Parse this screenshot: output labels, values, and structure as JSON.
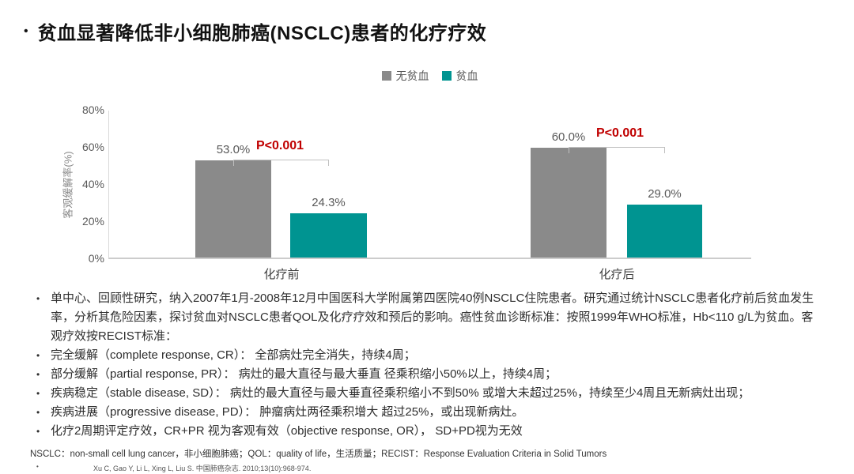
{
  "slide": {
    "title_bullet": "•",
    "title": "贫血显著降低非小细胞肺癌(NSCLC)患者的化疗疗效"
  },
  "chart_data": {
    "type": "bar",
    "title": "",
    "categories": [
      "化疗前",
      "化疗后"
    ],
    "series": [
      {
        "name": "无贫血",
        "color": "#8a8a8a",
        "values": [
          53.0,
          60.0
        ],
        "labels": [
          "53.0%",
          "60.0%"
        ]
      },
      {
        "name": "贫血",
        "color": "#009491",
        "values": [
          24.3,
          29.0
        ],
        "labels": [
          "24.3%",
          "29.0%"
        ]
      }
    ],
    "annotations": [
      "P<0.001",
      "P<0.001"
    ],
    "annotation_color": "#c00000",
    "xlabel": "",
    "ylabel": "客观缓解率(%)",
    "yticks": [
      "80%",
      "60%",
      "40%",
      "20%",
      "0%"
    ],
    "ylim": [
      0,
      80
    ],
    "grid": false,
    "legend_position": "top"
  },
  "notes": {
    "bullet_char": "•",
    "bullets": [
      "单中心、回顾性研究，纳入2007年1月-2008年12月中国医科大学附属第四医院40例NSCLC住院患者。研究通过统计NSCLC患者化疗前后贫血发生率，分析其危险因素，探讨贫血对NSCLC患者QOL及化疗疗效和预后的影响。癌性贫血诊断标准：按照1999年WHO标准，Hb<110 g/L为贫血。客观疗效按RECIST标准：",
      "完全缓解（complete response, CR）： 全部病灶完全消失，持续4周；",
      "部分缓解（partial response, PR）： 病灶的最大直径与最大垂直 径乘积缩小50%以上，持续4周；",
      "疾病稳定（stable disease, SD）： 病灶的最大直径与最大垂直径乘积缩小不到50% 或增大未超过25%，持续至少4周且无新病灶出现；",
      "疾病进展（progressive disease, PD）： 肿瘤病灶两径乘积增大 超过25%，或出现新病灶。",
      "化疗2周期评定疗效，CR+PR 视为客观有效（objective response, OR）， SD+PD视为无效"
    ]
  },
  "footer": {
    "abbreviations": "NSCLC：non-small cell lung cancer，非小细胞肺癌；QOL：quality of life，生活质量；RECIST：Response Evaluation Criteria in Solid Tumors",
    "reference": "Xu C, Gao Y, Li L, Xing L, Liu S. 中国肺癌杂志. 2010;13(10):968-974."
  }
}
